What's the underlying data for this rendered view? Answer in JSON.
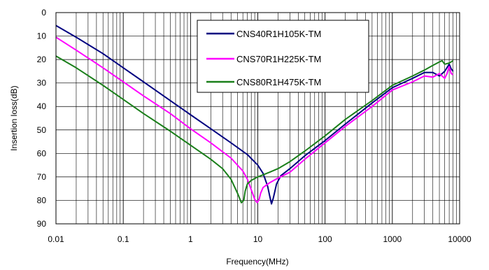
{
  "chart_data": {
    "type": "line",
    "xlabel": "Frequency(MHz)",
    "ylabel": "Insertion loss(dB)",
    "xscale": "log",
    "xlim": [
      0.01,
      10000
    ],
    "ylim": [
      0,
      90
    ],
    "y_inverted": true,
    "grid": "on",
    "legend_position": "top-right",
    "x_ticks": [
      {
        "value": 0.01,
        "label": "0.01"
      },
      {
        "value": 0.1,
        "label": "0.1"
      },
      {
        "value": 1,
        "label": "1"
      },
      {
        "value": 10,
        "label": "10"
      },
      {
        "value": 100,
        "label": "100"
      },
      {
        "value": 1000,
        "label": "1000"
      },
      {
        "value": 10000,
        "label": "10000"
      }
    ],
    "y_ticks": [
      {
        "value": 0,
        "label": "0"
      },
      {
        "value": 10,
        "label": "10"
      },
      {
        "value": 20,
        "label": "20"
      },
      {
        "value": 30,
        "label": "30"
      },
      {
        "value": 40,
        "label": "40"
      },
      {
        "value": 50,
        "label": "50"
      },
      {
        "value": 60,
        "label": "60"
      },
      {
        "value": 70,
        "label": "70"
      },
      {
        "value": 80,
        "label": "80"
      },
      {
        "value": 90,
        "label": "90"
      }
    ],
    "series": [
      {
        "name": "CNS40R1H105K-TM",
        "color": "#000080",
        "points": [
          [
            0.01,
            5.5
          ],
          [
            0.02,
            10.5
          ],
          [
            0.05,
            17.5
          ],
          [
            0.1,
            23.5
          ],
          [
            0.2,
            29.5
          ],
          [
            0.5,
            37.5
          ],
          [
            1,
            43.5
          ],
          [
            2,
            49.5
          ],
          [
            4,
            55.5
          ],
          [
            7,
            60.5
          ],
          [
            10,
            65
          ],
          [
            12,
            68.5
          ],
          [
            14,
            74
          ],
          [
            15,
            78
          ],
          [
            16,
            81.5
          ],
          [
            17,
            79
          ],
          [
            19,
            73
          ],
          [
            22,
            69.5
          ],
          [
            30,
            66.5
          ],
          [
            50,
            61
          ],
          [
            100,
            54.5
          ],
          [
            200,
            47.5
          ],
          [
            500,
            38.5
          ],
          [
            1000,
            32
          ],
          [
            2000,
            28
          ],
          [
            3000,
            25.5
          ],
          [
            4000,
            25.5
          ],
          [
            5000,
            27
          ],
          [
            6000,
            25
          ],
          [
            7000,
            22
          ],
          [
            7500,
            24
          ],
          [
            8000,
            25
          ]
        ]
      },
      {
        "name": "CNS70R1H225K-TM",
        "color": "#ff00ff",
        "points": [
          [
            0.01,
            10.5
          ],
          [
            0.02,
            16
          ],
          [
            0.05,
            23.5
          ],
          [
            0.1,
            29.5
          ],
          [
            0.2,
            35.5
          ],
          [
            0.5,
            43
          ],
          [
            1,
            49.5
          ],
          [
            2,
            55.5
          ],
          [
            4,
            62
          ],
          [
            6,
            67.5
          ],
          [
            7,
            71
          ],
          [
            8,
            75.5
          ],
          [
            9,
            79.5
          ],
          [
            9.8,
            81
          ],
          [
            10.5,
            79.5
          ],
          [
            11,
            77
          ],
          [
            12,
            74.5
          ],
          [
            15,
            72.5
          ],
          [
            20,
            70.5
          ],
          [
            30,
            68
          ],
          [
            50,
            62.5
          ],
          [
            100,
            55.5
          ],
          [
            200,
            48.5
          ],
          [
            500,
            40
          ],
          [
            1000,
            33
          ],
          [
            2000,
            29.5
          ],
          [
            3000,
            27
          ],
          [
            4000,
            27.5
          ],
          [
            5000,
            26
          ],
          [
            6000,
            28
          ],
          [
            6500,
            26
          ],
          [
            7000,
            23
          ],
          [
            7500,
            26
          ],
          [
            8000,
            26.5
          ]
        ]
      },
      {
        "name": "CNS80R1H475K-TM",
        "color": "#1a7f1a",
        "points": [
          [
            0.01,
            18.5
          ],
          [
            0.02,
            23.5
          ],
          [
            0.05,
            31
          ],
          [
            0.1,
            37
          ],
          [
            0.2,
            43
          ],
          [
            0.5,
            50.5
          ],
          [
            1,
            56.5
          ],
          [
            2,
            62.5
          ],
          [
            3,
            66.5
          ],
          [
            4,
            71
          ],
          [
            5,
            77
          ],
          [
            5.7,
            81
          ],
          [
            6.2,
            80
          ],
          [
            6.5,
            76
          ],
          [
            7,
            73
          ],
          [
            8,
            71.5
          ],
          [
            10,
            70
          ],
          [
            15,
            68
          ],
          [
            20,
            66.5
          ],
          [
            30,
            63.5
          ],
          [
            50,
            59
          ],
          [
            100,
            52.5
          ],
          [
            200,
            45.5
          ],
          [
            500,
            37.5
          ],
          [
            1000,
            31
          ],
          [
            2000,
            27
          ],
          [
            3000,
            24.5
          ],
          [
            4000,
            22.5
          ],
          [
            5000,
            21
          ],
          [
            5500,
            20.5
          ],
          [
            6000,
            22
          ],
          [
            7000,
            21.5
          ],
          [
            8000,
            20.5
          ]
        ]
      }
    ]
  }
}
